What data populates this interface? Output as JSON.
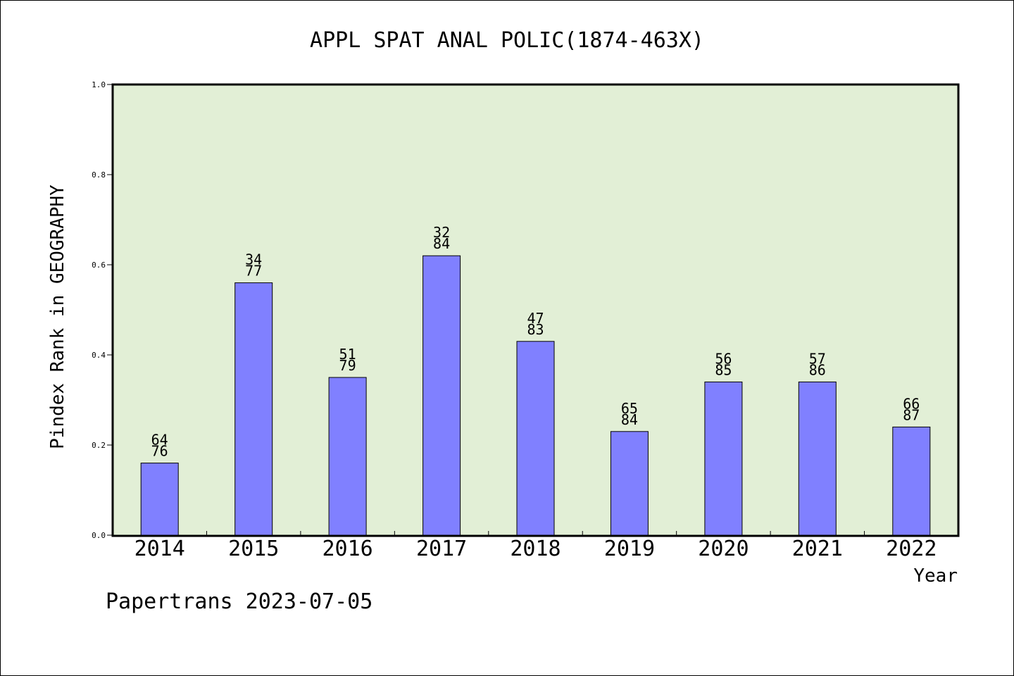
{
  "chart_data": {
    "type": "bar",
    "title": "APPL SPAT ANAL POLIC(1874-463X)",
    "xlabel": "Year",
    "ylabel": "Pindex Rank in GEOGRAPHY",
    "ylim": [
      0,
      1.0
    ],
    "yticks": [
      "0.0",
      "0.2",
      "0.4",
      "0.6",
      "0.8",
      "1.0"
    ],
    "categories": [
      "2014",
      "2015",
      "2016",
      "2017",
      "2018",
      "2019",
      "2020",
      "2021",
      "2022"
    ],
    "values": [
      0.16,
      0.56,
      0.35,
      0.62,
      0.43,
      0.23,
      0.34,
      0.34,
      0.24
    ],
    "labels_top": [
      "64",
      "34",
      "51",
      "32",
      "47",
      "65",
      "56",
      "57",
      "66"
    ],
    "labels_bottom": [
      "76",
      "77",
      "79",
      "84",
      "83",
      "84",
      "85",
      "86",
      "87"
    ],
    "grid": false,
    "legend": "none",
    "colors": {
      "bar": "#8080ff",
      "plot_bg": "#e2efd6",
      "axis": "#000000"
    }
  },
  "footer": {
    "text": "Papertrans 2023-07-05"
  }
}
